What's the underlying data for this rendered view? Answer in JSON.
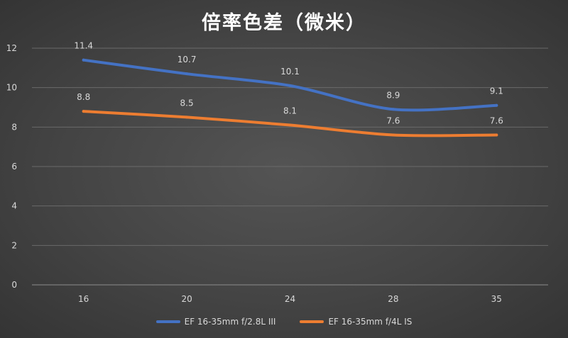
{
  "chart_data": {
    "type": "line",
    "title": "倍率色差（微米）",
    "categories": [
      "16",
      "20",
      "24",
      "28",
      "35"
    ],
    "ylim": [
      0,
      12
    ],
    "yticks": [
      "0",
      "2",
      "4",
      "6",
      "8",
      "10",
      "12"
    ],
    "grid": true,
    "legend_position": "bottom",
    "series": [
      {
        "name": "EF 16-35mm f/2.8L III",
        "color": "#4472c4",
        "values": [
          11.4,
          10.7,
          10.1,
          8.9,
          9.1
        ],
        "labels": [
          "11.4",
          "10.7",
          "10.1",
          "8.9",
          "9.1"
        ]
      },
      {
        "name": "EF 16-35mm f/4L IS",
        "color": "#ed7d31",
        "values": [
          8.8,
          8.5,
          8.1,
          7.6,
          7.6
        ],
        "labels": [
          "8.8",
          "8.5",
          "8.1",
          "7.6",
          "7.6"
        ]
      }
    ]
  }
}
